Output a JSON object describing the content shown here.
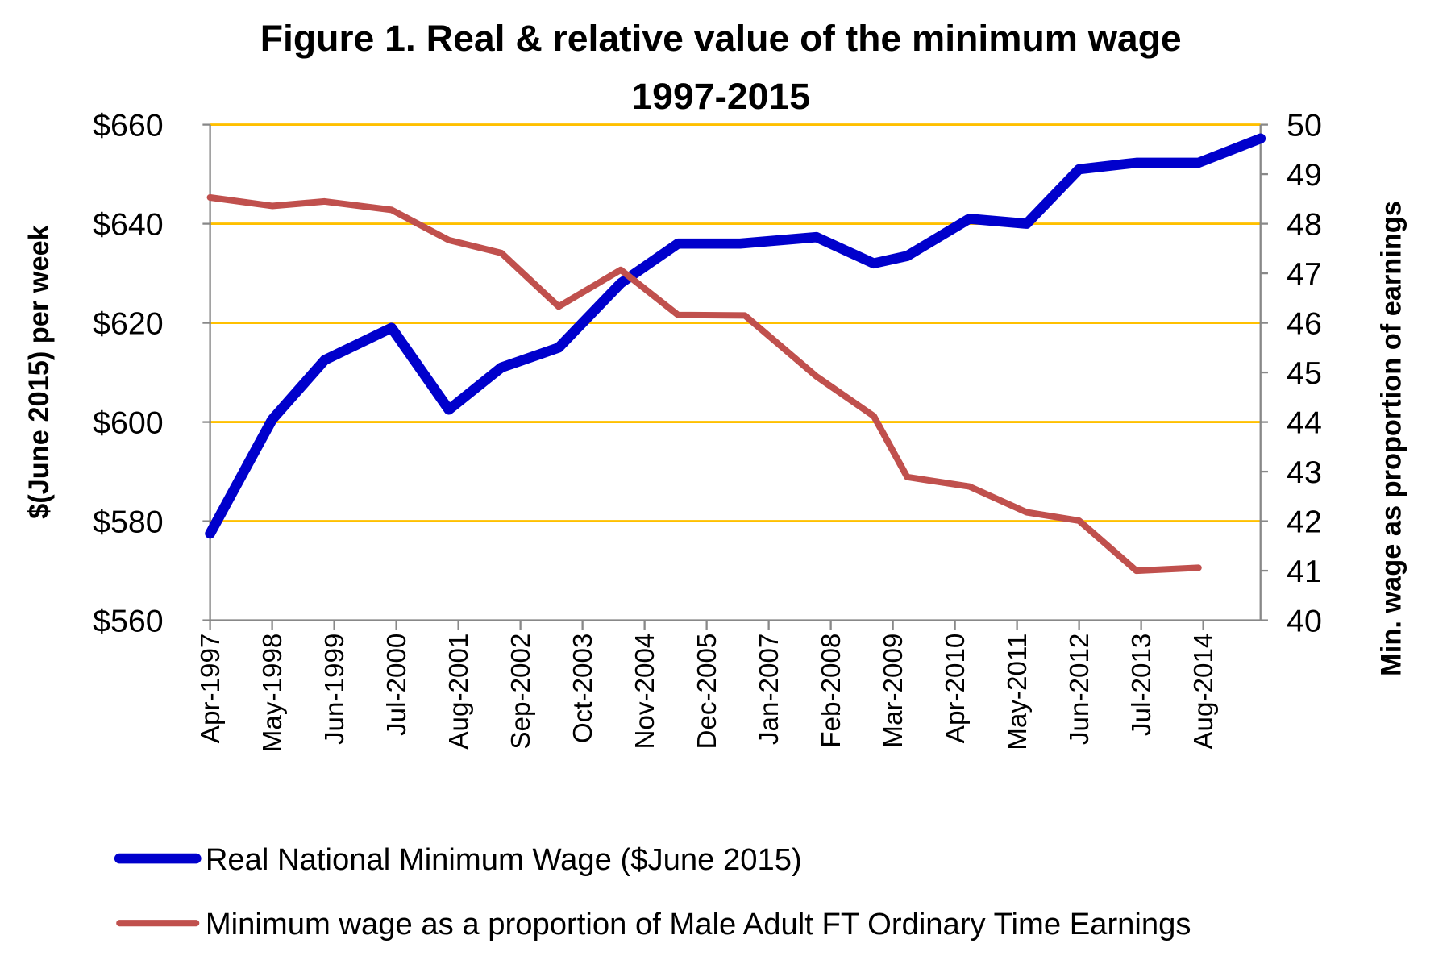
{
  "chart_data": {
    "type": "line",
    "title": "Figure 1. Real & relative value of the minimum wage",
    "subtitle": "1997-2015",
    "ylabel": "$(June 2015) per week",
    "y2label": "Min. wage as proportion of earnings",
    "ylim": [
      560,
      660
    ],
    "y2lim": [
      40,
      50
    ],
    "yticks": [
      "$560",
      "$580",
      "$600",
      "$620",
      "$640",
      "$660"
    ],
    "y2ticks": [
      "40",
      "41",
      "42",
      "43",
      "44",
      "45",
      "46",
      "47",
      "48",
      "49",
      "50"
    ],
    "xticks": [
      "Apr-1997",
      "May-1998",
      "Jun-1999",
      "Jul-2000",
      "Aug-2001",
      "Sep-2002",
      "Oct-2003",
      "Nov-2004",
      "Dec-2005",
      "Jan-2007",
      "Feb-2008",
      "Mar-2009",
      "Apr-2010",
      "May-2011",
      "Jun-2012",
      "Jul-2013",
      "Aug-2014"
    ],
    "xlim": [
      "1997-04",
      "2015-08"
    ],
    "grid": true,
    "legend_placement": "bottom",
    "series": [
      {
        "name": "Real National Minimum Wage ($June 2015)",
        "axis": "left",
        "color": "#0000CC",
        "x": [
          "1997-04",
          "1998-05",
          "1999-04",
          "2000-06",
          "2001-06",
          "2002-05",
          "2003-05",
          "2004-06",
          "2005-06",
          "2006-07",
          "2007-11",
          "2008-11",
          "2009-06",
          "2010-07",
          "2011-07",
          "2012-06",
          "2013-06",
          "2014-07",
          "2015-08"
        ],
        "y": [
          577.5,
          600.5,
          612.5,
          619,
          602.5,
          611,
          615,
          628,
          636,
          636,
          637.3,
          632,
          633.5,
          641,
          640,
          651,
          652.3,
          652.3,
          657.2
        ]
      },
      {
        "name": "Minimum wage as a proportion of Male Adult FT Ordinary Time Earnings",
        "axis": "right",
        "color": "#C0504D",
        "x": [
          "1997-04",
          "1998-05",
          "1999-04",
          "2000-06",
          "2001-06",
          "2002-05",
          "2003-05",
          "2004-06",
          "2005-06",
          "2006-08",
          "2007-11",
          "2008-11",
          "2009-06",
          "2010-07",
          "2011-07",
          "2012-06",
          "2013-06",
          "2014-07"
        ],
        "y": [
          48.53,
          48.36,
          48.45,
          48.28,
          47.67,
          47.41,
          46.33,
          47.07,
          46.16,
          46.15,
          44.92,
          44.12,
          42.89,
          42.7,
          42.18,
          42.01,
          41.0,
          41.06
        ]
      }
    ],
    "colors": {
      "grid": "#FFC000",
      "axis": "#888888"
    }
  }
}
